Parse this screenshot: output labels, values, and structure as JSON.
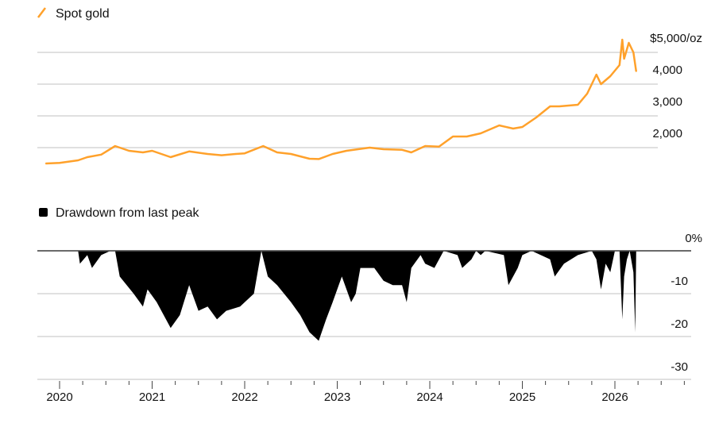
{
  "chart_data": [
    {
      "type": "line",
      "legend": "Spot gold",
      "legend_placement": "top-left",
      "color": "#FFA12B",
      "yticks": [
        {
          "value": 2000,
          "label": "2,000"
        },
        {
          "value": 3000,
          "label": "3,000"
        },
        {
          "value": 4000,
          "label": "4,000"
        },
        {
          "value": 5000,
          "label": "$5,000/oz"
        }
      ],
      "grid": true,
      "x": [
        2019.85,
        2020.0,
        2020.2,
        2020.3,
        2020.45,
        2020.6,
        2020.75,
        2020.9,
        2021.0,
        2021.2,
        2021.4,
        2021.6,
        2021.75,
        2021.9,
        2022.0,
        2022.2,
        2022.35,
        2022.5,
        2022.7,
        2022.8,
        2022.95,
        2023.1,
        2023.35,
        2023.5,
        2023.7,
        2023.8,
        2023.95,
        2024.1,
        2024.25,
        2024.4,
        2024.55,
        2024.75,
        2024.9,
        2025.0,
        2025.15,
        2025.3,
        2025.4,
        2025.6,
        2025.7,
        2025.8,
        2025.85,
        2025.95,
        2026.05,
        2026.08,
        2026.1,
        2026.15,
        2026.2,
        2026.23
      ],
      "values": [
        1500,
        1520,
        1600,
        1700,
        1780,
        2050,
        1900,
        1850,
        1900,
        1700,
        1880,
        1800,
        1760,
        1800,
        1820,
        2050,
        1850,
        1800,
        1650,
        1640,
        1800,
        1900,
        2000,
        1950,
        1930,
        1850,
        2050,
        2030,
        2350,
        2350,
        2450,
        2700,
        2600,
        2650,
        2950,
        3300,
        3300,
        3350,
        3700,
        4300,
        4000,
        4250,
        4600,
        5400,
        4800,
        5300,
        5000,
        4400
      ]
    },
    {
      "type": "area",
      "legend": "Drawdown from last peak",
      "legend_placement": "top-left",
      "color": "#000000",
      "ylim": [
        -30,
        0
      ],
      "yticks": [
        {
          "value": 0,
          "label": "0%"
        },
        {
          "value": -10,
          "label": "-10"
        },
        {
          "value": -20,
          "label": "-20"
        },
        {
          "value": -30,
          "label": "-30"
        }
      ],
      "xticks": [
        "2020",
        "2021",
        "2022",
        "2023",
        "2024",
        "2025",
        "2026"
      ],
      "grid": true,
      "x": [
        2019.85,
        2020.2,
        2020.22,
        2020.3,
        2020.35,
        2020.45,
        2020.55,
        2020.6,
        2020.65,
        2020.8,
        2020.9,
        2020.95,
        2021.05,
        2021.2,
        2021.3,
        2021.4,
        2021.5,
        2021.6,
        2021.7,
        2021.8,
        2021.95,
        2022.1,
        2022.18,
        2022.25,
        2022.35,
        2022.5,
        2022.6,
        2022.7,
        2022.8,
        2022.88,
        2022.95,
        2023.05,
        2023.15,
        2023.2,
        2023.25,
        2023.4,
        2023.5,
        2023.6,
        2023.7,
        2023.75,
        2023.8,
        2023.9,
        2023.95,
        2024.05,
        2024.15,
        2024.3,
        2024.35,
        2024.45,
        2024.5,
        2024.55,
        2024.6,
        2024.8,
        2024.85,
        2024.95,
        2025.0,
        2025.1,
        2025.3,
        2025.35,
        2025.45,
        2025.6,
        2025.75,
        2025.8,
        2025.85,
        2025.9,
        2025.95,
        2026.0,
        2026.05,
        2026.08,
        2026.1,
        2026.13,
        2026.16,
        2026.2,
        2026.22,
        2026.23
      ],
      "values": [
        0,
        0,
        -3,
        -1,
        -4,
        -1,
        0,
        0,
        -6,
        -10,
        -13,
        -9,
        -12,
        -18,
        -15,
        -8,
        -14,
        -13,
        -16,
        -14,
        -13,
        -10,
        0,
        -6,
        -8,
        -12,
        -15,
        -19,
        -21,
        -16,
        -12,
        -6,
        -12,
        -10,
        -4,
        -4,
        -7,
        -8,
        -8,
        -12,
        -4,
        -1,
        -3,
        -4,
        0,
        -1,
        -4,
        -2,
        0,
        -1,
        0,
        -1,
        -8,
        -4,
        -1,
        0,
        -2,
        -6,
        -3,
        -1,
        0,
        -2,
        -9,
        -3,
        -5,
        0,
        0,
        -16,
        -6,
        -2,
        0,
        -5,
        -19,
        0
      ]
    }
  ]
}
